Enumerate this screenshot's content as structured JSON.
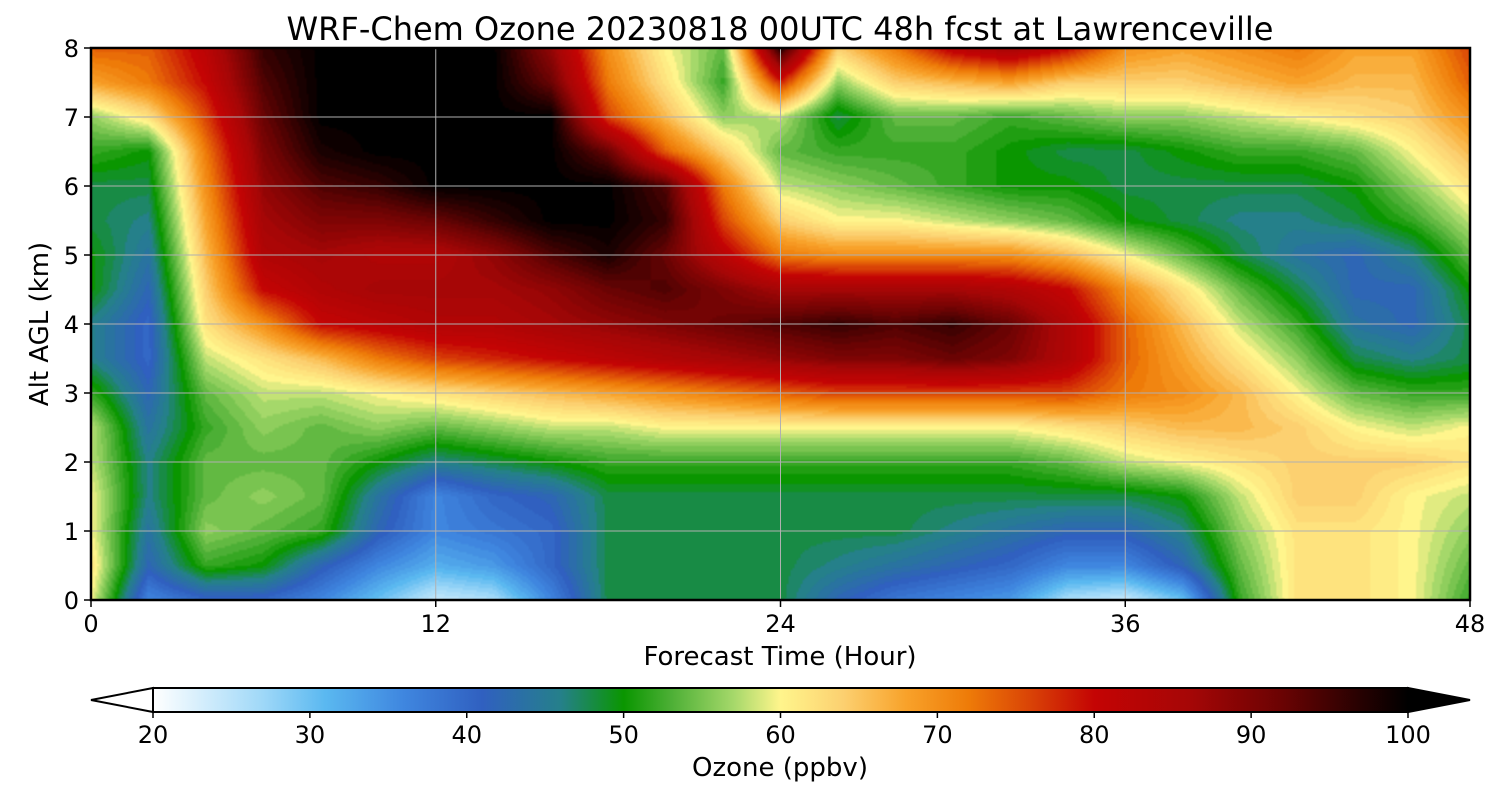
{
  "chart_data": {
    "type": "heatmap",
    "title": "WRF-Chem Ozone  20230818 00UTC 48h fcst at Lawrenceville",
    "xlabel": "Forecast Time (Hour)",
    "ylabel": "Alt AGL (km)",
    "xlim": [
      0,
      48
    ],
    "ylim": [
      0,
      8
    ],
    "xticks": [
      "0",
      "12",
      "24",
      "36",
      "48"
    ],
    "yticks": [
      "0",
      "1",
      "2",
      "3",
      "4",
      "5",
      "6",
      "7",
      "8"
    ],
    "grid": true,
    "x_hours": [
      0,
      2,
      4,
      6,
      8,
      10,
      12,
      14,
      16,
      18,
      20,
      22,
      24,
      26,
      28,
      30,
      32,
      34,
      36,
      38,
      40,
      42,
      44,
      46,
      48
    ],
    "y_km": [
      0,
      0.5,
      1,
      1.5,
      2,
      2.5,
      3,
      3.5,
      4,
      4.5,
      5,
      5.5,
      6,
      6.5,
      7,
      7.5,
      8
    ],
    "z_ppbv": [
      [
        60,
        36,
        40,
        40,
        36,
        30,
        24,
        26,
        36,
        48,
        48,
        48,
        48,
        42,
        38,
        36,
        34,
        26,
        24,
        30,
        52,
        62,
        62,
        60,
        52
      ],
      [
        62,
        42,
        52,
        50,
        42,
        36,
        32,
        34,
        40,
        48,
        48,
        48,
        48,
        46,
        44,
        42,
        40,
        36,
        36,
        42,
        54,
        62,
        62,
        60,
        54
      ],
      [
        60,
        44,
        56,
        54,
        52,
        42,
        36,
        38,
        40,
        48,
        48,
        48,
        48,
        48,
        48,
        46,
        44,
        42,
        42,
        46,
        56,
        62,
        62,
        60,
        56
      ],
      [
        60,
        46,
        54,
        56,
        54,
        44,
        36,
        40,
        42,
        48,
        48,
        48,
        48,
        48,
        48,
        48,
        48,
        48,
        48,
        50,
        58,
        64,
        64,
        60,
        58
      ],
      [
        58,
        46,
        54,
        54,
        54,
        50,
        46,
        48,
        50,
        52,
        52,
        52,
        52,
        52,
        52,
        52,
        52,
        54,
        58,
        60,
        62,
        64,
        64,
        64,
        62
      ],
      [
        58,
        44,
        52,
        56,
        54,
        56,
        54,
        56,
        58,
        58,
        60,
        60,
        60,
        60,
        60,
        60,
        60,
        62,
        64,
        66,
        66,
        64,
        60,
        58,
        60
      ],
      [
        52,
        42,
        54,
        58,
        58,
        60,
        62,
        64,
        66,
        68,
        70,
        72,
        74,
        76,
        76,
        76,
        76,
        76,
        72,
        70,
        66,
        60,
        54,
        52,
        52
      ],
      [
        46,
        40,
        58,
        62,
        66,
        72,
        76,
        78,
        80,
        82,
        84,
        86,
        88,
        90,
        90,
        92,
        90,
        84,
        74,
        68,
        62,
        56,
        48,
        46,
        48
      ],
      [
        46,
        40,
        62,
        70,
        80,
        82,
        84,
        84,
        86,
        88,
        90,
        92,
        94,
        96,
        94,
        96,
        92,
        84,
        74,
        66,
        58,
        52,
        44,
        42,
        48
      ],
      [
        50,
        42,
        64,
        80,
        84,
        86,
        86,
        86,
        88,
        92,
        94,
        90,
        86,
        86,
        86,
        86,
        84,
        80,
        70,
        62,
        54,
        48,
        42,
        42,
        50
      ],
      [
        50,
        44,
        66,
        84,
        86,
        84,
        84,
        88,
        94,
        98,
        92,
        82,
        72,
        70,
        70,
        70,
        70,
        66,
        60,
        54,
        48,
        44,
        42,
        46,
        54
      ],
      [
        48,
        46,
        68,
        86,
        90,
        90,
        92,
        96,
        100,
        100,
        96,
        76,
        64,
        60,
        60,
        58,
        56,
        54,
        50,
        48,
        46,
        46,
        48,
        52,
        58
      ],
      [
        48,
        48,
        70,
        88,
        94,
        96,
        100,
        100,
        100,
        100,
        94,
        72,
        58,
        56,
        54,
        52,
        50,
        50,
        48,
        48,
        48,
        48,
        50,
        56,
        62
      ],
      [
        52,
        50,
        72,
        90,
        98,
        100,
        100,
        100,
        100,
        92,
        74,
        64,
        54,
        52,
        52,
        52,
        50,
        48,
        48,
        50,
        52,
        52,
        54,
        60,
        66
      ],
      [
        56,
        62,
        76,
        92,
        100,
        100,
        100,
        100,
        100,
        76,
        66,
        56,
        58,
        48,
        54,
        54,
        52,
        54,
        56,
        56,
        58,
        60,
        62,
        64,
        70
      ],
      [
        68,
        72,
        80,
        94,
        100,
        100,
        100,
        100,
        92,
        72,
        62,
        52,
        78,
        56,
        64,
        66,
        68,
        64,
        64,
        64,
        66,
        68,
        66,
        66,
        74
      ],
      [
        74,
        74,
        82,
        96,
        100,
        100,
        100,
        100,
        88,
        70,
        60,
        54,
        98,
        64,
        72,
        82,
        86,
        80,
        70,
        68,
        70,
        72,
        68,
        68,
        76
      ]
    ],
    "colorbar": {
      "label": "Ozone  (ppbv)",
      "min": 20,
      "max": 100,
      "ticks": [
        "20",
        "30",
        "40",
        "50",
        "60",
        "70",
        "80",
        "90",
        "100"
      ],
      "extend": "both",
      "colors": [
        {
          "v": 20,
          "c": "#ffffff"
        },
        {
          "v": 27,
          "c": "#9fd8f8"
        },
        {
          "v": 31,
          "c": "#5ab8f0"
        },
        {
          "v": 36,
          "c": "#3f86df"
        },
        {
          "v": 41,
          "c": "#3060c0"
        },
        {
          "v": 46,
          "c": "#25808a"
        },
        {
          "v": 50,
          "c": "#0a9600"
        },
        {
          "v": 53,
          "c": "#4caf35"
        },
        {
          "v": 57,
          "c": "#a5d86a"
        },
        {
          "v": 60,
          "c": "#fff58c"
        },
        {
          "v": 64,
          "c": "#fcd070"
        },
        {
          "v": 68,
          "c": "#f8a22a"
        },
        {
          "v": 72,
          "c": "#ee7b08"
        },
        {
          "v": 76,
          "c": "#d94206"
        },
        {
          "v": 80,
          "c": "#c40404"
        },
        {
          "v": 86,
          "c": "#a60606"
        },
        {
          "v": 92,
          "c": "#6a0303"
        },
        {
          "v": 97,
          "c": "#260101"
        },
        {
          "v": 100,
          "c": "#000000"
        }
      ]
    }
  }
}
